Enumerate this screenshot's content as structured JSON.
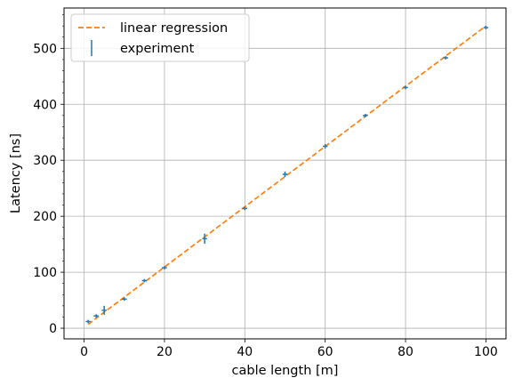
{
  "chart_data": {
    "type": "scatter",
    "title": "",
    "xlabel": "cable length [m]",
    "ylabel": "Latency [ns]",
    "xlim": [
      -5,
      105
    ],
    "ylim": [
      -19,
      572
    ],
    "x_ticks": [
      0,
      20,
      40,
      60,
      80,
      100
    ],
    "y_ticks": [
      0,
      100,
      200,
      300,
      400,
      500
    ],
    "grid": true,
    "legend_position": "top-left",
    "series": [
      {
        "name": "experiment",
        "kind": "errorbar",
        "color": "#1f77b4",
        "x": [
          1,
          3,
          5,
          10,
          15,
          20,
          30,
          40,
          50,
          60,
          70,
          80,
          90,
          100
        ],
        "y": [
          12,
          22,
          32,
          52,
          85,
          108,
          160,
          214,
          275,
          325,
          380,
          430,
          483,
          537
        ],
        "yerr": [
          3,
          3,
          8,
          3,
          3,
          3,
          9,
          3,
          5,
          4,
          3,
          3,
          3,
          3
        ],
        "xerr": [
          0.6,
          0.6,
          0.6,
          0.6,
          0.6,
          0.6,
          0.6,
          0.6,
          0.6,
          0.6,
          0.6,
          0.6,
          0.6,
          0.6
        ]
      },
      {
        "name": "linear regression",
        "kind": "line",
        "style": "dashed",
        "color": "#ff7f0e",
        "x": [
          1,
          100
        ],
        "y": [
          7,
          540
        ]
      }
    ]
  }
}
